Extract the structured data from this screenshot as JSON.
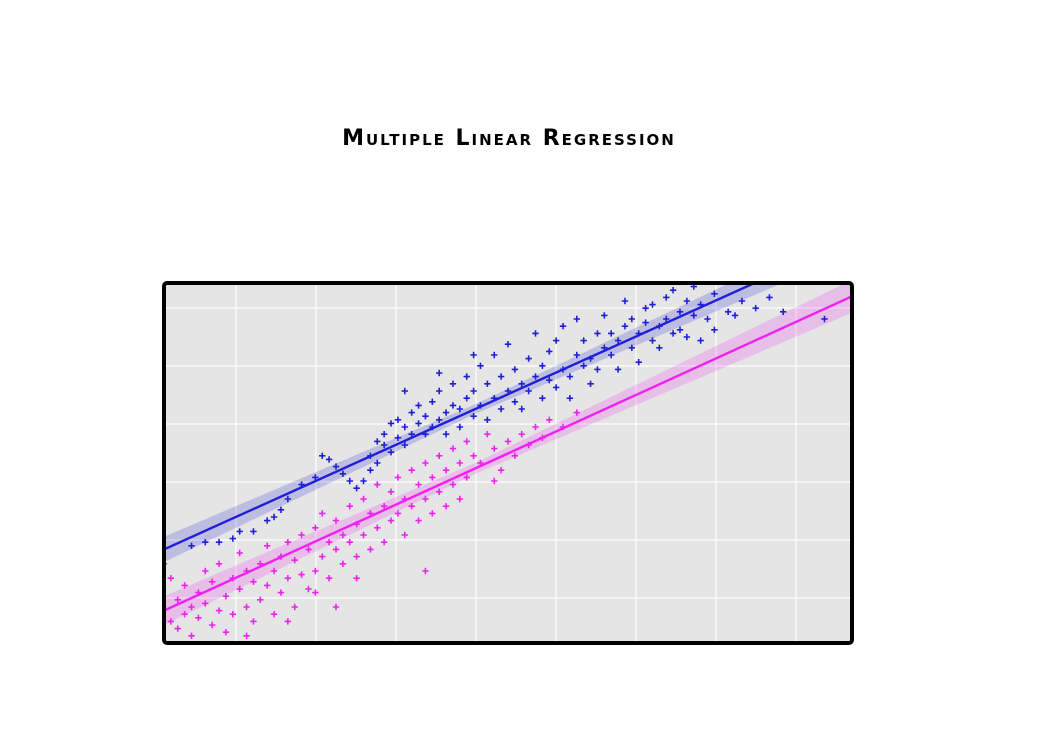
{
  "chart_data": {
    "type": "scatter",
    "title": "Multiple Linear Regression",
    "xlabel": "",
    "ylabel": "",
    "xlim": [
      0,
      100
    ],
    "ylim": [
      0,
      100
    ],
    "grid": true,
    "legend": "none",
    "colors": {
      "background": "#e5e5e5",
      "grid": "#ffffff",
      "frame": "#000000",
      "series_a": "#1f1fd6",
      "series_b": "#ee22ee"
    },
    "series": [
      {
        "color": "#1f1fd6",
        "trend": {
          "intercept": 26,
          "slope": 0.862
        },
        "band": 2.2,
        "points": [
          [
            4,
            27
          ],
          [
            6,
            28
          ],
          [
            8,
            28
          ],
          [
            10,
            29
          ],
          [
            11,
            31
          ],
          [
            13,
            31
          ],
          [
            15,
            34
          ],
          [
            16,
            35
          ],
          [
            17,
            37
          ],
          [
            18,
            40
          ],
          [
            20,
            44
          ],
          [
            22,
            46
          ],
          [
            23,
            52
          ],
          [
            24,
            51
          ],
          [
            25,
            49
          ],
          [
            26,
            47
          ],
          [
            27,
            45
          ],
          [
            28,
            43
          ],
          [
            29,
            45
          ],
          [
            30,
            48
          ],
          [
            30,
            52
          ],
          [
            31,
            50
          ],
          [
            31,
            56
          ],
          [
            32,
            55
          ],
          [
            32,
            58
          ],
          [
            33,
            53
          ],
          [
            33,
            61
          ],
          [
            34,
            57
          ],
          [
            34,
            62
          ],
          [
            35,
            60
          ],
          [
            35,
            55
          ],
          [
            36,
            58
          ],
          [
            36,
            64
          ],
          [
            37,
            61
          ],
          [
            37,
            66
          ],
          [
            38,
            63
          ],
          [
            38,
            58
          ],
          [
            39,
            60
          ],
          [
            39,
            67
          ],
          [
            40,
            62
          ],
          [
            40,
            70
          ],
          [
            41,
            64
          ],
          [
            41,
            58
          ],
          [
            42,
            66
          ],
          [
            42,
            72
          ],
          [
            43,
            65
          ],
          [
            43,
            60
          ],
          [
            44,
            68
          ],
          [
            44,
            74
          ],
          [
            45,
            63
          ],
          [
            45,
            70
          ],
          [
            46,
            66
          ],
          [
            46,
            77
          ],
          [
            47,
            62
          ],
          [
            47,
            72
          ],
          [
            48,
            68
          ],
          [
            48,
            80
          ],
          [
            49,
            65
          ],
          [
            49,
            74
          ],
          [
            50,
            70
          ],
          [
            50,
            83
          ],
          [
            51,
            67
          ],
          [
            51,
            76
          ],
          [
            52,
            72
          ],
          [
            52,
            65
          ],
          [
            53,
            79
          ],
          [
            53,
            70
          ],
          [
            54,
            74
          ],
          [
            54,
            86
          ],
          [
            55,
            68
          ],
          [
            55,
            77
          ],
          [
            56,
            73
          ],
          [
            56,
            81
          ],
          [
            57,
            71
          ],
          [
            57,
            84
          ],
          [
            58,
            76
          ],
          [
            58,
            88
          ],
          [
            59,
            74
          ],
          [
            59,
            68
          ],
          [
            60,
            80
          ],
          [
            60,
            90
          ],
          [
            61,
            77
          ],
          [
            61,
            84
          ],
          [
            62,
            79
          ],
          [
            62,
            72
          ],
          [
            63,
            86
          ],
          [
            63,
            76
          ],
          [
            64,
            82
          ],
          [
            64,
            91
          ],
          [
            65,
            80
          ],
          [
            65,
            86
          ],
          [
            66,
            84
          ],
          [
            66,
            76
          ],
          [
            67,
            88
          ],
          [
            67,
            95
          ],
          [
            68,
            82
          ],
          [
            68,
            90
          ],
          [
            69,
            86
          ],
          [
            69,
            78
          ],
          [
            70,
            89
          ],
          [
            70,
            93
          ],
          [
            71,
            84
          ],
          [
            71,
            94
          ],
          [
            72,
            88
          ],
          [
            72,
            82
          ],
          [
            73,
            96
          ],
          [
            73,
            90
          ],
          [
            74,
            86
          ],
          [
            74,
            98
          ],
          [
            75,
            92
          ],
          [
            75,
            87
          ],
          [
            76,
            95
          ],
          [
            77,
            91
          ],
          [
            77,
            99
          ],
          [
            78,
            94
          ],
          [
            79,
            90
          ],
          [
            80,
            97
          ],
          [
            80,
            87
          ],
          [
            82,
            92
          ],
          [
            83,
            91
          ],
          [
            84,
            95
          ],
          [
            86,
            93
          ],
          [
            88,
            96
          ],
          [
            90,
            92
          ],
          [
            96,
            90
          ],
          [
            78,
            84
          ],
          [
            76,
            85
          ],
          [
            45,
            80
          ],
          [
            40,
            75
          ],
          [
            35,
            70
          ]
        ]
      },
      {
        "color": "#ee22ee",
        "trend": {
          "intercept": 9,
          "slope": 0.873
        },
        "band": 2.5,
        "points": [
          [
            0,
            22
          ],
          [
            1,
            18
          ],
          [
            1,
            6
          ],
          [
            2,
            12
          ],
          [
            2,
            4
          ],
          [
            3,
            16
          ],
          [
            3,
            8
          ],
          [
            4,
            10
          ],
          [
            4,
            2
          ],
          [
            5,
            14
          ],
          [
            5,
            7
          ],
          [
            6,
            20
          ],
          [
            6,
            11
          ],
          [
            7,
            5
          ],
          [
            7,
            17
          ],
          [
            8,
            9
          ],
          [
            8,
            22
          ],
          [
            9,
            13
          ],
          [
            9,
            3
          ],
          [
            10,
            18
          ],
          [
            10,
            8
          ],
          [
            11,
            15
          ],
          [
            11,
            25
          ],
          [
            12,
            10
          ],
          [
            12,
            20
          ],
          [
            13,
            6
          ],
          [
            13,
            17
          ],
          [
            14,
            22
          ],
          [
            14,
            12
          ],
          [
            15,
            27
          ],
          [
            15,
            16
          ],
          [
            16,
            8
          ],
          [
            16,
            20
          ],
          [
            17,
            24
          ],
          [
            17,
            14
          ],
          [
            18,
            28
          ],
          [
            18,
            18
          ],
          [
            19,
            10
          ],
          [
            19,
            23
          ],
          [
            20,
            30
          ],
          [
            20,
            19
          ],
          [
            21,
            15
          ],
          [
            21,
            26
          ],
          [
            22,
            32
          ],
          [
            22,
            20
          ],
          [
            23,
            36
          ],
          [
            23,
            24
          ],
          [
            24,
            28
          ],
          [
            24,
            18
          ],
          [
            25,
            34
          ],
          [
            25,
            26
          ],
          [
            26,
            30
          ],
          [
            26,
            22
          ],
          [
            27,
            38
          ],
          [
            27,
            28
          ],
          [
            28,
            33
          ],
          [
            28,
            24
          ],
          [
            29,
            40
          ],
          [
            29,
            30
          ],
          [
            30,
            36
          ],
          [
            30,
            26
          ],
          [
            31,
            44
          ],
          [
            31,
            32
          ],
          [
            32,
            38
          ],
          [
            32,
            28
          ],
          [
            33,
            42
          ],
          [
            33,
            34
          ],
          [
            34,
            46
          ],
          [
            34,
            36
          ],
          [
            35,
            40
          ],
          [
            35,
            30
          ],
          [
            36,
            48
          ],
          [
            36,
            38
          ],
          [
            37,
            44
          ],
          [
            37,
            34
          ],
          [
            38,
            50
          ],
          [
            38,
            40
          ],
          [
            39,
            46
          ],
          [
            39,
            36
          ],
          [
            40,
            52
          ],
          [
            40,
            42
          ],
          [
            41,
            48
          ],
          [
            41,
            38
          ],
          [
            42,
            54
          ],
          [
            42,
            44
          ],
          [
            43,
            50
          ],
          [
            43,
            40
          ],
          [
            44,
            56
          ],
          [
            44,
            46
          ],
          [
            45,
            52
          ],
          [
            46,
            50
          ],
          [
            47,
            58
          ],
          [
            48,
            54
          ],
          [
            49,
            48
          ],
          [
            50,
            56
          ],
          [
            51,
            52
          ],
          [
            52,
            58
          ],
          [
            53,
            55
          ],
          [
            54,
            60
          ],
          [
            55,
            57
          ],
          [
            56,
            62
          ],
          [
            58,
            60
          ],
          [
            60,
            64
          ],
          [
            28,
            18
          ],
          [
            22,
            14
          ],
          [
            25,
            10
          ],
          [
            38,
            20
          ],
          [
            48,
            45
          ],
          [
            12,
            2
          ],
          [
            18,
            6
          ]
        ]
      }
    ]
  }
}
